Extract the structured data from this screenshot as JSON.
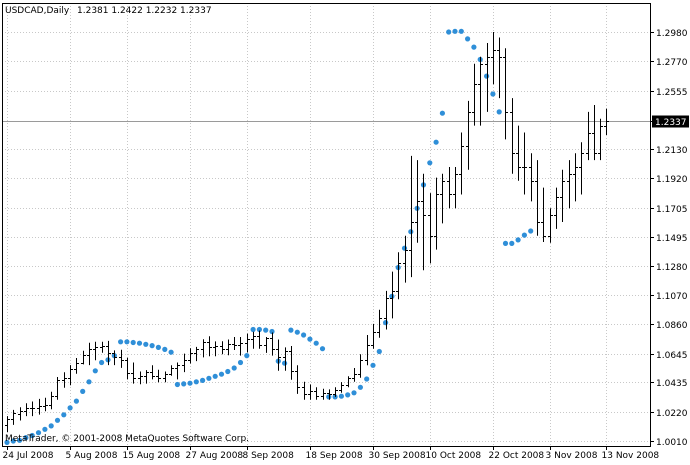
{
  "header": {
    "symbol_label": "USDCAD,Daily",
    "ohlc_label": "1.2381 1.2422 1.2232 1.2337"
  },
  "copyright": "MetaTrader, © 2001-2008 MetaQuotes Software Corp.",
  "price_marker": {
    "value": 1.2337,
    "label": "1.2337",
    "bg": "#000000",
    "fg": "#ffffff"
  },
  "colors": {
    "bars": "#000000",
    "sar": "#2f8fd8",
    "grid": "#c8c8c8",
    "marker_line": "#9a9a9a"
  },
  "chart_data": {
    "type": "ohlc",
    "title": "USDCAD,Daily",
    "indicator": "Parabolic SAR",
    "ylim": [
      1.0,
      1.31
    ],
    "y_ticks": [
      1.001,
      1.022,
      1.0435,
      1.0645,
      1.086,
      1.107,
      1.128,
      1.1495,
      1.1705,
      1.192,
      1.213,
      1.2337,
      1.2555,
      1.277,
      1.298
    ],
    "y_tick_labels": [
      "1.0010",
      "1.0220",
      "1.0435",
      "1.0645",
      "1.0860",
      "1.1070",
      "1.1280",
      "1.1495",
      "1.1705",
      "1.1920",
      "1.2130",
      "1.2337",
      "1.2555",
      "1.2770",
      "1.2980"
    ],
    "x_labels": [
      {
        "label": "24 Jul 2008",
        "bar": 0
      },
      {
        "label": "5 Aug 2008",
        "bar": 10
      },
      {
        "label": "15 Aug 2008",
        "bar": 19
      },
      {
        "label": "27 Aug 2008",
        "bar": 29
      },
      {
        "label": "8 Sep 2008",
        "bar": 38
      },
      {
        "label": "18 Sep 2008",
        "bar": 48
      },
      {
        "label": "30 Sep 2008",
        "bar": 58
      },
      {
        "label": "10 Oct 2008",
        "bar": 67
      },
      {
        "label": "22 Oct 2008",
        "bar": 77
      },
      {
        "label": "3 Nov 2008",
        "bar": 86
      },
      {
        "label": "13 Nov 2008",
        "bar": 95
      }
    ],
    "bars": [
      [
        1.0123,
        1.0191,
        1.0075,
        1.017
      ],
      [
        1.0171,
        1.0236,
        1.0127,
        1.021
      ],
      [
        1.0209,
        1.0255,
        1.0159,
        1.0229
      ],
      [
        1.0229,
        1.0284,
        1.0191,
        1.025
      ],
      [
        1.025,
        1.0297,
        1.0191,
        1.0252
      ],
      [
        1.0251,
        1.0316,
        1.0202,
        1.0261
      ],
      [
        1.0262,
        1.0324,
        1.0226,
        1.0274
      ],
      [
        1.0273,
        1.0368,
        1.0241,
        1.0339
      ],
      [
        1.0338,
        1.0475,
        1.031,
        1.045
      ],
      [
        1.045,
        1.0509,
        1.0397,
        1.047
      ],
      [
        1.047,
        1.0561,
        1.0415,
        1.0531
      ],
      [
        1.0531,
        1.0613,
        1.0498,
        1.0574
      ],
      [
        1.0574,
        1.0665,
        1.0566,
        1.0635
      ],
      [
        1.0635,
        1.0724,
        1.0561,
        1.068
      ],
      [
        1.068,
        1.073,
        1.0597,
        1.0695
      ],
      [
        1.0695,
        1.073,
        1.0651,
        1.07
      ],
      [
        1.07,
        1.0737,
        1.0561,
        1.065
      ],
      [
        1.065,
        1.0668,
        1.0561,
        1.062
      ],
      [
        1.062,
        1.0672,
        1.0541,
        1.06
      ],
      [
        1.06,
        1.0615,
        1.0457,
        1.0506
      ],
      [
        1.0506,
        1.058,
        1.0427,
        1.047
      ],
      [
        1.047,
        1.0515,
        1.0422,
        1.048
      ],
      [
        1.048,
        1.0525,
        1.0427,
        1.051
      ],
      [
        1.051,
        1.056,
        1.0457,
        1.048
      ],
      [
        1.048,
        1.0528,
        1.0437,
        1.047
      ],
      [
        1.047,
        1.0515,
        1.0436,
        1.05
      ],
      [
        1.05,
        1.056,
        1.0484,
        1.054
      ],
      [
        1.054,
        1.058,
        1.0457,
        1.056
      ],
      [
        1.056,
        1.0645,
        1.051,
        1.06
      ],
      [
        1.06,
        1.0684,
        1.0573,
        1.065
      ],
      [
        1.065,
        1.0693,
        1.059,
        1.068
      ],
      [
        1.068,
        1.0749,
        1.0617,
        1.073
      ],
      [
        1.073,
        1.077,
        1.0626,
        1.069
      ],
      [
        1.069,
        1.0733,
        1.0626,
        1.07
      ],
      [
        1.07,
        1.0735,
        1.064,
        1.068
      ],
      [
        1.068,
        1.0747,
        1.0632,
        1.0716
      ],
      [
        1.0716,
        1.0765,
        1.0671,
        1.071
      ],
      [
        1.071,
        1.0765,
        1.063,
        1.0725
      ],
      [
        1.0725,
        1.079,
        1.0653,
        1.075
      ],
      [
        1.075,
        1.0804,
        1.068,
        1.077
      ],
      [
        1.077,
        1.0812,
        1.068,
        1.071
      ],
      [
        1.071,
        1.0765,
        1.065,
        1.076
      ],
      [
        1.076,
        1.0798,
        1.063,
        1.068
      ],
      [
        1.068,
        1.0747,
        1.052,
        1.062
      ],
      [
        1.062,
        1.069,
        1.052,
        1.066
      ],
      [
        1.066,
        1.07,
        1.0455,
        1.052
      ],
      [
        1.052,
        1.056,
        1.0352,
        1.04
      ],
      [
        1.04,
        1.044,
        1.0309,
        1.035
      ],
      [
        1.035,
        1.042,
        1.0309,
        1.037
      ],
      [
        1.037,
        1.04,
        1.031,
        1.034
      ],
      [
        1.034,
        1.039,
        1.0309,
        1.036
      ],
      [
        1.036,
        1.0385,
        1.0309,
        1.035
      ],
      [
        1.035,
        1.04,
        1.033,
        1.038
      ],
      [
        1.038,
        1.0438,
        1.036,
        1.042
      ],
      [
        1.042,
        1.048,
        1.04,
        1.0465
      ],
      [
        1.0465,
        1.054,
        1.044,
        1.05
      ],
      [
        1.05,
        1.064,
        1.047,
        1.06
      ],
      [
        1.06,
        1.078,
        1.056,
        1.071
      ],
      [
        1.071,
        1.086,
        1.068,
        1.08
      ],
      [
        1.08,
        1.0963,
        1.076,
        1.09
      ],
      [
        1.09,
        1.11,
        1.082,
        1.105
      ],
      [
        1.105,
        1.124,
        1.09,
        1.11
      ],
      [
        1.11,
        1.138,
        1.104,
        1.13
      ],
      [
        1.13,
        1.15,
        1.116,
        1.14
      ],
      [
        1.14,
        1.208,
        1.12,
        1.16
      ],
      [
        1.16,
        1.205,
        1.145,
        1.175
      ],
      [
        1.175,
        1.195,
        1.125,
        1.165
      ],
      [
        1.165,
        1.181,
        1.13,
        1.15
      ],
      [
        1.15,
        1.1923,
        1.14,
        1.18
      ],
      [
        1.18,
        1.195,
        1.159,
        1.19
      ],
      [
        1.19,
        1.2,
        1.17,
        1.18
      ],
      [
        1.18,
        1.2,
        1.17,
        1.195
      ],
      [
        1.195,
        1.225,
        1.18,
        1.215
      ],
      [
        1.215,
        1.248,
        1.198,
        1.24
      ],
      [
        1.24,
        1.275,
        1.23,
        1.26
      ],
      [
        1.26,
        1.28,
        1.23,
        1.275
      ],
      [
        1.275,
        1.29,
        1.24,
        1.28
      ],
      [
        1.28,
        1.298,
        1.26,
        1.285
      ],
      [
        1.285,
        1.294,
        1.25,
        1.28
      ],
      [
        1.28,
        1.2862,
        1.22,
        1.24
      ],
      [
        1.24,
        1.25,
        1.195,
        1.21
      ],
      [
        1.21,
        1.23,
        1.19,
        1.2
      ],
      [
        1.2,
        1.225,
        1.18,
        1.2
      ],
      [
        1.2,
        1.21,
        1.175,
        1.19
      ],
      [
        1.19,
        1.205,
        1.15,
        1.16
      ],
      [
        1.16,
        1.185,
        1.1455,
        1.15
      ],
      [
        1.15,
        1.17,
        1.145,
        1.165
      ],
      [
        1.165,
        1.185,
        1.155,
        1.178
      ],
      [
        1.178,
        1.198,
        1.16,
        1.19
      ],
      [
        1.19,
        1.205,
        1.17,
        1.195
      ],
      [
        1.195,
        1.21,
        1.175,
        1.2
      ],
      [
        1.2,
        1.218,
        1.18,
        1.21
      ],
      [
        1.21,
        1.24,
        1.205,
        1.225
      ],
      [
        1.225,
        1.245,
        1.205,
        1.21
      ],
      [
        1.21,
        1.235,
        1.205,
        1.23
      ],
      [
        1.23,
        1.2422,
        1.2232,
        1.2337
      ]
    ],
    "sar": [
      [
        0,
        1.0
      ],
      [
        1,
        1.001
      ],
      [
        2,
        1.0015
      ],
      [
        3,
        1.0035
      ],
      [
        4,
        1.005
      ],
      [
        5,
        1.007
      ],
      [
        6,
        1.0095
      ],
      [
        7,
        1.012
      ],
      [
        8,
        1.016
      ],
      [
        9,
        1.02
      ],
      [
        10,
        1.025
      ],
      [
        11,
        1.03
      ],
      [
        12,
        1.037
      ],
      [
        13,
        1.044
      ],
      [
        14,
        1.052
      ],
      [
        15,
        1.058
      ],
      [
        16,
        1.06
      ],
      [
        17,
        1.063
      ],
      [
        18,
        1.073
      ],
      [
        19,
        1.073
      ],
      [
        20,
        1.0725
      ],
      [
        21,
        1.072
      ],
      [
        22,
        1.0712
      ],
      [
        23,
        1.0703
      ],
      [
        24,
        1.069
      ],
      [
        25,
        1.0675
      ],
      [
        26,
        1.0655
      ],
      [
        27,
        1.042
      ],
      [
        28,
        1.0425
      ],
      [
        29,
        1.043
      ],
      [
        30,
        1.044
      ],
      [
        31,
        1.045
      ],
      [
        32,
        1.0465
      ],
      [
        33,
        1.048
      ],
      [
        34,
        1.0495
      ],
      [
        35,
        1.0515
      ],
      [
        36,
        1.054
      ],
      [
        37,
        1.058
      ],
      [
        38,
        1.063
      ],
      [
        39,
        1.082
      ],
      [
        40,
        1.082
      ],
      [
        41,
        1.0815
      ],
      [
        42,
        1.0805
      ],
      [
        43,
        1.059
      ],
      [
        44,
        1.0575
      ],
      [
        45,
        1.0815
      ],
      [
        46,
        1.08
      ],
      [
        47,
        1.078
      ],
      [
        48,
        1.075
      ],
      [
        49,
        1.072
      ],
      [
        50,
        1.068
      ],
      [
        51,
        1.033
      ],
      [
        52,
        1.033
      ],
      [
        53,
        1.0335
      ],
      [
        54,
        1.0345
      ],
      [
        55,
        1.036
      ],
      [
        56,
        1.04
      ],
      [
        57,
        1.046
      ],
      [
        58,
        1.056
      ],
      [
        59,
        1.066
      ],
      [
        60,
        1.087
      ],
      [
        61,
        1.106
      ],
      [
        62,
        1.127
      ],
      [
        63,
        1.141
      ],
      [
        64,
        1.153
      ],
      [
        65,
        1.17
      ],
      [
        66,
        1.187
      ],
      [
        67,
        1.203
      ],
      [
        68,
        1.218
      ],
      [
        69,
        1.239
      ],
      [
        70,
        1.298
      ],
      [
        71,
        1.2985
      ],
      [
        72,
        1.2985
      ],
      [
        73,
        1.293
      ],
      [
        74,
        1.287
      ],
      [
        75,
        1.278
      ],
      [
        76,
        1.266
      ],
      [
        77,
        1.253
      ],
      [
        78,
        1.24
      ],
      [
        79,
        1.1445
      ],
      [
        80,
        1.1445
      ],
      [
        81,
        1.147
      ],
      [
        82,
        1.1505
      ],
      [
        83,
        1.1535
      ]
    ]
  }
}
